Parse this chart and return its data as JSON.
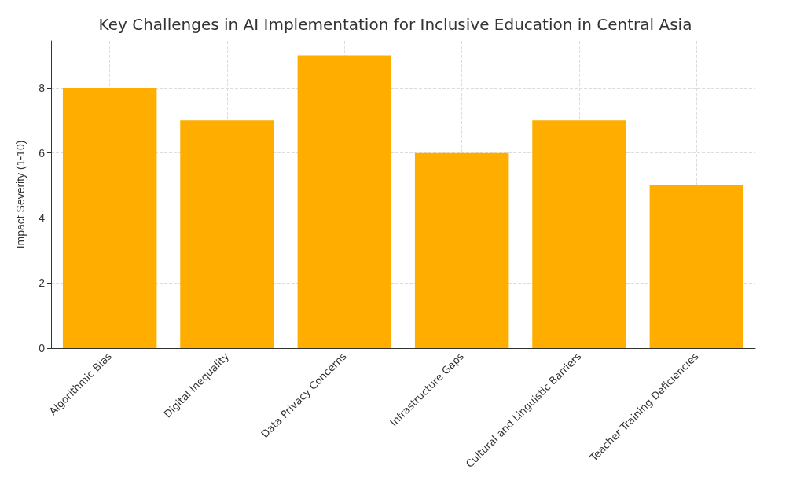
{
  "chart_data": {
    "type": "bar",
    "title": "Key Challenges in AI Implementation for Inclusive Education in Central Asia",
    "ylabel": "Impact Severity (1-10)",
    "categories": [
      "Algorithmic Bias",
      "Digital Inequality",
      "Data Privacy Concerns",
      "Infrastructure Gaps",
      "Cultural and Linguistic Barriers",
      "Teacher Training Deficiencies"
    ],
    "values": [
      8,
      7,
      9,
      6,
      7,
      5
    ],
    "color": "#ffae00",
    "ylim": [
      0,
      9.45
    ],
    "yticks": [
      0,
      2,
      4,
      6,
      8
    ],
    "grid": true
  }
}
